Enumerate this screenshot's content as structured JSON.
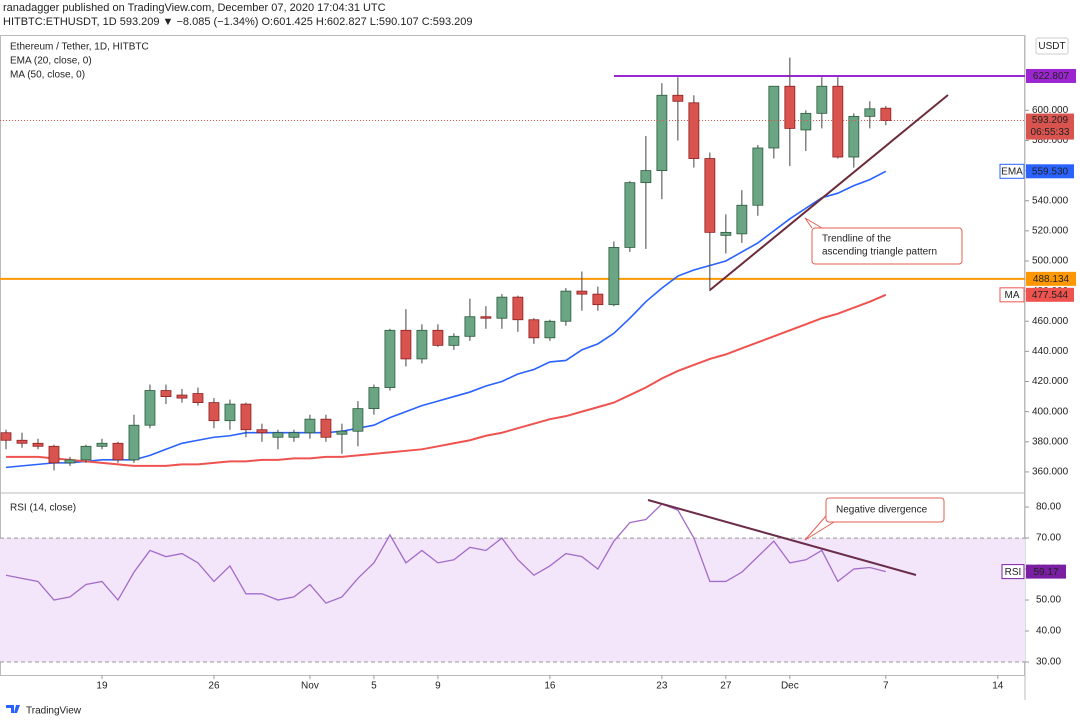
{
  "header": {
    "author_line": "ranadagger published on TradingView.com, December 07, 2020 17:04:31 UTC",
    "symbol_line": "HITBTC:ETHUSDT, 1D  593.209  ▼ −8.085 (−1.34%)  O:601.425  H:602.827  L:590.107  C:593.209"
  },
  "footer": "TradingView",
  "chart_data": {
    "type": "candlestick",
    "title": "Ethereum / Tether, 1D, HITBTC",
    "currency": "USDT",
    "up_color": "#6aa584",
    "down_color": "#d9534f",
    "candles": {
      "open": [
        386,
        381,
        379,
        377,
        366,
        368,
        377,
        379,
        368,
        391,
        414,
        411,
        412,
        406,
        394,
        405,
        388,
        383,
        383,
        386,
        395,
        385,
        387,
        402,
        416,
        454,
        435,
        454,
        444,
        450,
        463,
        462,
        476,
        461,
        449,
        460,
        480,
        478,
        471,
        509,
        552,
        560,
        610,
        605,
        568,
        517,
        518,
        537,
        575,
        616,
        587,
        598,
        616,
        569,
        596,
        601.425
      ],
      "high": [
        388,
        386,
        382,
        378,
        370,
        378,
        382,
        380,
        398,
        418,
        418,
        415,
        416,
        409,
        408,
        406,
        392,
        388,
        388,
        398,
        398,
        392,
        407,
        418,
        455,
        468,
        458,
        458,
        452,
        475,
        470,
        478,
        477,
        462,
        461,
        482,
        493,
        483,
        513,
        553,
        583,
        618,
        622,
        610,
        572,
        531,
        547,
        577,
        616,
        635,
        600,
        622,
        622,
        598,
        606,
        602.827
      ],
      "low": [
        375,
        376,
        375,
        361,
        364,
        366,
        375,
        366,
        366,
        389,
        405,
        406,
        404,
        389,
        388,
        383,
        380,
        375,
        380,
        382,
        380,
        372,
        377,
        398,
        414,
        430,
        432,
        443,
        441,
        447,
        455,
        455,
        453,
        445,
        447,
        457,
        467,
        467,
        470,
        506,
        508,
        541,
        580,
        562,
        480,
        505,
        512,
        530,
        568,
        563,
        573,
        588,
        568,
        562,
        588,
        590.107
      ],
      "close": [
        381,
        379,
        377,
        366,
        368,
        377,
        379,
        368,
        391,
        414,
        410,
        409,
        406,
        394,
        405,
        388,
        386,
        386,
        386,
        395,
        383,
        387,
        402,
        416,
        454,
        435,
        454,
        444,
        450,
        463,
        462,
        476,
        461,
        449,
        460,
        480,
        478,
        471,
        509,
        552,
        560,
        610,
        606,
        568,
        519,
        519,
        537,
        575,
        616,
        588,
        598,
        616,
        569,
        596,
        601,
        593.209
      ]
    },
    "series": [
      {
        "name": "EMA (20, close, 0)",
        "color": "#2962ff",
        "values": [
          363,
          364,
          365,
          366,
          366,
          367,
          368,
          368,
          368,
          371,
          375,
          379,
          381,
          383,
          384,
          386,
          386,
          386,
          386,
          386,
          386,
          387,
          389,
          391,
          396,
          400,
          404,
          407,
          410,
          413,
          417,
          420,
          425,
          428,
          433,
          434,
          441,
          445,
          452,
          462,
          473,
          482,
          490,
          494,
          497,
          500,
          506,
          512,
          520,
          528,
          535,
          542,
          545,
          550,
          554,
          559.53
        ]
      },
      {
        "name": "MA (50, close, 0)",
        "color": "#ef5350",
        "values": [
          370,
          370,
          370,
          369,
          368,
          367,
          366,
          365,
          364,
          364,
          364,
          365,
          365,
          366,
          367,
          367,
          368,
          368,
          369,
          369,
          370,
          370,
          371,
          372,
          373,
          374,
          375,
          377,
          379,
          381,
          384,
          386,
          389,
          392,
          395,
          397,
          400,
          403,
          406,
          411,
          416,
          422,
          427,
          431,
          435,
          438,
          442,
          446,
          450,
          454,
          458,
          462,
          465,
          469,
          473,
          477.544
        ]
      }
    ],
    "xlim": [
      -0.375,
      63.7
    ],
    "xticks": [
      {
        "value": 6,
        "label": "19"
      },
      {
        "value": 13,
        "label": "26"
      },
      {
        "value": 19,
        "label": "Nov"
      },
      {
        "value": 23,
        "label": "5"
      },
      {
        "value": 27,
        "label": "9"
      },
      {
        "value": 34,
        "label": "16"
      },
      {
        "value": 41,
        "label": "23"
      },
      {
        "value": 45,
        "label": "27"
      },
      {
        "value": 49,
        "label": "Dec"
      },
      {
        "value": 55,
        "label": "7"
      },
      {
        "value": 62,
        "label": "14"
      }
    ],
    "ylim": [
      346,
      650
    ],
    "yticks": [
      {
        "value": 360,
        "label": "360.000"
      },
      {
        "value": 380,
        "label": "380.000"
      },
      {
        "value": 400,
        "label": "400.000"
      },
      {
        "value": 420,
        "label": "420.000"
      },
      {
        "value": 440,
        "label": "440.000"
      },
      {
        "value": 460,
        "label": "460.000"
      },
      {
        "value": 480,
        "label": "480.000"
      },
      {
        "value": 500,
        "label": "500.000"
      },
      {
        "value": 520,
        "label": "520.000"
      },
      {
        "value": 540,
        "label": "540.000"
      },
      {
        "value": 560,
        "label": "560.000"
      },
      {
        "value": 580,
        "label": "580.000"
      },
      {
        "value": 600,
        "label": "600.000"
      }
    ],
    "levels": [
      {
        "value": 622.807,
        "color": "#9c27d0"
      },
      {
        "value": 488.134,
        "color": "#ff9800"
      }
    ],
    "last_price": {
      "value": 593.209,
      "countdown": "06:55:33",
      "color": "#d9534f"
    },
    "tags": [
      {
        "name": "EMA",
        "value": 559.53,
        "label": "559.530",
        "color": "#2962ff"
      },
      {
        "name": "MA",
        "value": 477.544,
        "color": "#ef5350"
      }
    ],
    "annotations": [
      [
        "Trendline of the",
        "ascending triangle pattern"
      ],
      [
        "Negative divergence"
      ]
    ],
    "rsi": {
      "name": "RSI (14, close)",
      "tag": "RSI",
      "color": "#a36cc8",
      "band": [
        30,
        70
      ],
      "band_color": "#f3e6fb",
      "values": [
        58,
        57,
        56,
        50,
        51,
        55,
        56,
        50,
        59,
        66,
        64,
        65,
        62,
        56,
        61,
        52,
        52,
        50,
        51,
        55,
        49,
        51,
        57,
        62,
        71,
        62,
        66,
        62,
        63,
        67,
        66,
        70,
        63,
        58,
        61,
        65,
        64,
        60,
        69,
        75,
        76,
        81,
        79,
        70,
        56,
        56,
        59,
        64,
        69,
        62,
        63,
        66,
        56,
        60,
        60.5,
        59.17
      ],
      "ylim": [
        25.8,
        83.9
      ],
      "yticks": [
        {
          "value": 30,
          "label": "30.00"
        },
        {
          "value": 40,
          "label": "40.00"
        },
        {
          "value": 50,
          "label": "50.00"
        },
        {
          "value": 60,
          "label": "60.00"
        },
        {
          "value": 70,
          "label": "70.00"
        },
        {
          "value": 80,
          "label": "80.00"
        }
      ]
    }
  }
}
